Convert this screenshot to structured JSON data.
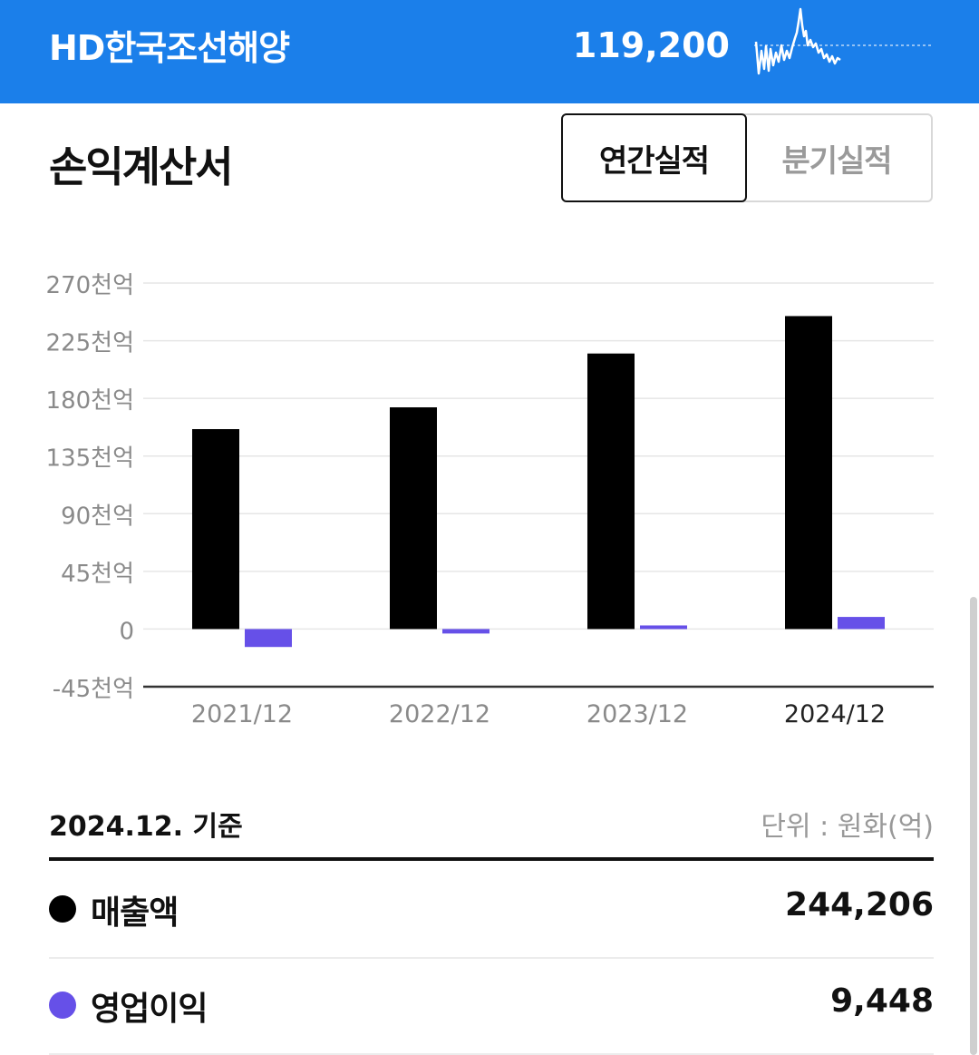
{
  "header": {
    "stock_name": "HD한국조선해양",
    "price": "119,200",
    "background_color": "#1b7fea"
  },
  "section": {
    "title": "손익계산서",
    "tabs": [
      {
        "label": "연간실적",
        "selected": true
      },
      {
        "label": "분기실적",
        "selected": false
      }
    ]
  },
  "chart_data": {
    "type": "bar",
    "categories": [
      "2021/12",
      "2022/12",
      "2023/12",
      "2024/12"
    ],
    "highlighted_category": "2024/12",
    "y_ticks": [
      {
        "value": 270000,
        "label": "270천억"
      },
      {
        "value": 225000,
        "label": "225천억"
      },
      {
        "value": 180000,
        "label": "180천억"
      },
      {
        "value": 135000,
        "label": "135천억"
      },
      {
        "value": 90000,
        "label": "90천억"
      },
      {
        "value": 45000,
        "label": "45천억"
      },
      {
        "value": 0,
        "label": "0"
      },
      {
        "value": -45000,
        "label": "-45천억"
      }
    ],
    "ylim": [
      -45000,
      270000
    ],
    "grid": true,
    "series": [
      {
        "name": "매출액",
        "color": "#000000",
        "values": [
          156000,
          173000,
          215000,
          244206
        ]
      },
      {
        "name": "영업이익",
        "color": "#6650e8",
        "values": [
          -14000,
          -3500,
          2800,
          9448
        ]
      }
    ]
  },
  "summary": {
    "basis_date": "2024.12. 기준",
    "unit": "단위 : 원화(억)",
    "rows": [
      {
        "label": "매출액",
        "value": "244,206",
        "color": "#000000"
      },
      {
        "label": "영업이익",
        "value": "9,448",
        "color": "#6650e8"
      }
    ]
  }
}
